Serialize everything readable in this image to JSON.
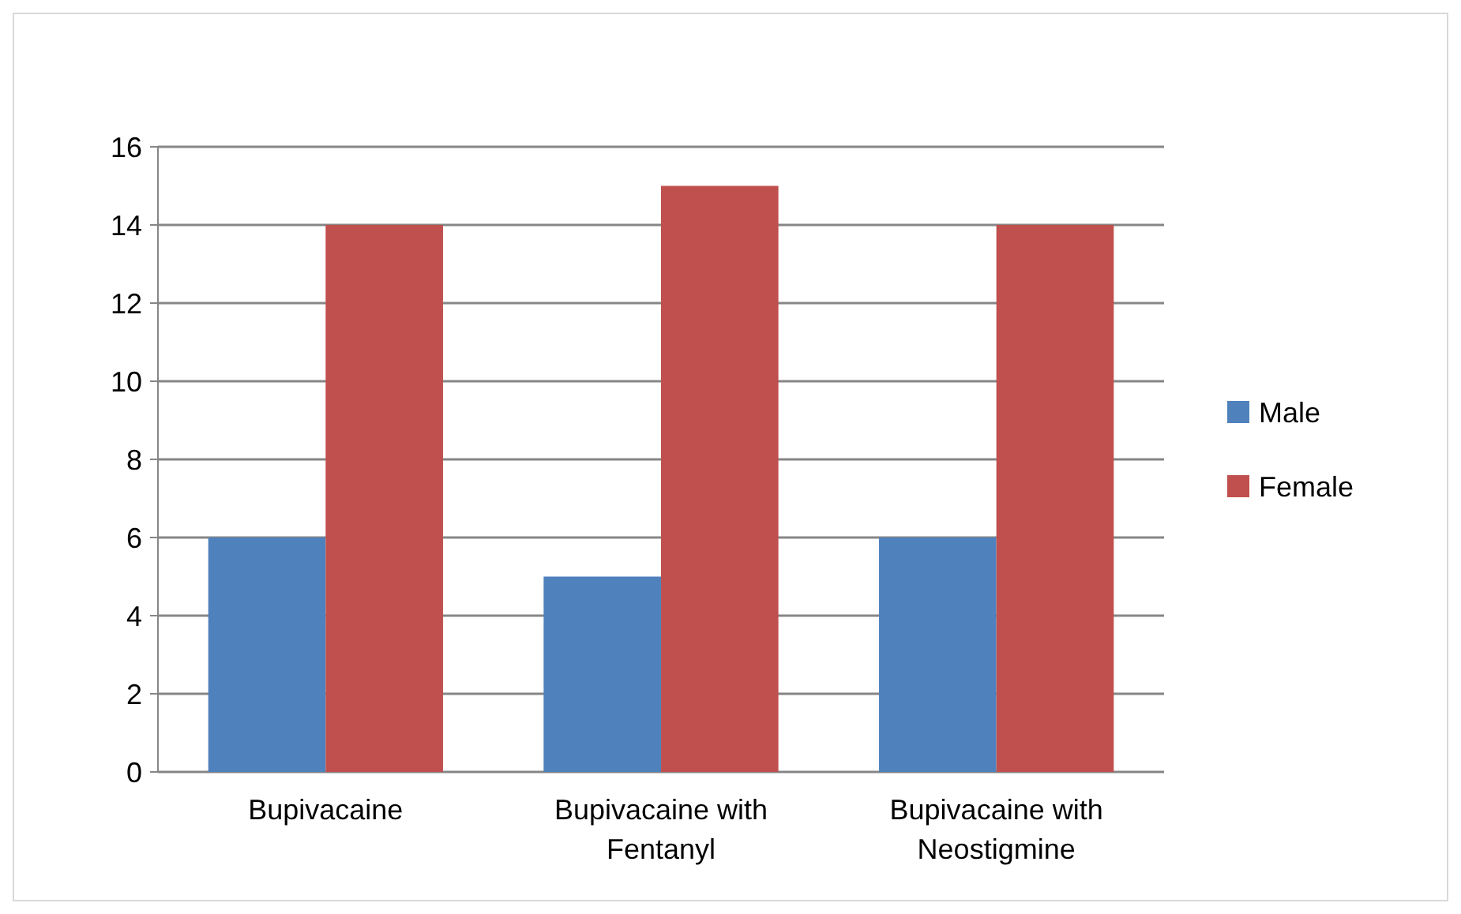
{
  "chart_data": {
    "type": "bar",
    "categories": [
      "Bupivacaine",
      "Bupivacaine with Fentanyl",
      "Bupivacaine with Neostigmine"
    ],
    "series": [
      {
        "name": "Male",
        "color": "#4f81bd",
        "values": [
          6,
          5,
          6
        ]
      },
      {
        "name": "Female",
        "color": "#c0504d",
        "values": [
          14,
          15,
          14
        ]
      }
    ],
    "ylim": [
      0,
      16
    ],
    "yticks": [
      0,
      2,
      4,
      6,
      8,
      10,
      12,
      14,
      16
    ],
    "grid": "y",
    "legend": "right"
  }
}
